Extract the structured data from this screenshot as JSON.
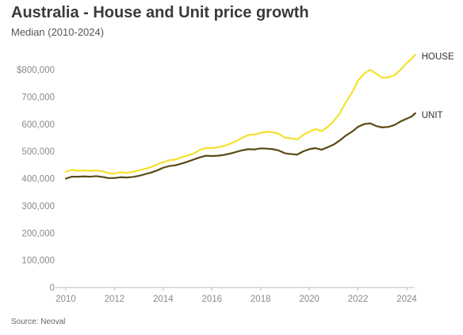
{
  "chart_title": "Australia - House and Unit price growth",
  "chart_subtitle": "Median (2010-2024)",
  "source": "Source: Neoval",
  "colors": {
    "house": "#f5e12c",
    "unit": "#5a4a12",
    "axis": "#bbbbbb",
    "tick_text": "#8a8a8a"
  },
  "chart_data": {
    "type": "line",
    "title": "Australia - House and Unit price growth",
    "subtitle": "Median (2010-2024)",
    "xlabel": "",
    "ylabel": "",
    "xlim": [
      2010,
      2024.4
    ],
    "ylim": [
      0,
      800000
    ],
    "grid": false,
    "legend": "labels at line ends (right)",
    "x_ticks": [
      {
        "value": 2010,
        "label": "2010"
      },
      {
        "value": 2012,
        "label": "2012"
      },
      {
        "value": 2014,
        "label": "2014"
      },
      {
        "value": 2016,
        "label": "2016"
      },
      {
        "value": 2018,
        "label": "2018"
      },
      {
        "value": 2020,
        "label": "2020"
      },
      {
        "value": 2022,
        "label": "2022"
      },
      {
        "value": 2024,
        "label": "2024"
      }
    ],
    "y_ticks": [
      {
        "value": 0,
        "label": "0"
      },
      {
        "value": 100000,
        "label": "100,000"
      },
      {
        "value": 200000,
        "label": "200,000"
      },
      {
        "value": 300000,
        "label": "300,000"
      },
      {
        "value": 400000,
        "label": "400,000"
      },
      {
        "value": 500000,
        "label": "500,000"
      },
      {
        "value": 600000,
        "label": "600,000"
      },
      {
        "value": 700000,
        "label": "700,000"
      },
      {
        "value": 800000,
        "label": "$800,000"
      }
    ],
    "series": [
      {
        "name": "HOUSE",
        "color": "#f5e12c",
        "points": [
          [
            2010.0,
            425000
          ],
          [
            2010.25,
            432000
          ],
          [
            2010.5,
            429000
          ],
          [
            2010.75,
            430000
          ],
          [
            2011.0,
            428000
          ],
          [
            2011.25,
            430000
          ],
          [
            2011.5,
            427000
          ],
          [
            2011.75,
            420000
          ],
          [
            2012.0,
            418000
          ],
          [
            2012.25,
            424000
          ],
          [
            2012.5,
            421000
          ],
          [
            2012.75,
            425000
          ],
          [
            2013.0,
            430000
          ],
          [
            2013.25,
            436000
          ],
          [
            2013.5,
            442000
          ],
          [
            2013.75,
            452000
          ],
          [
            2014.0,
            460000
          ],
          [
            2014.25,
            467000
          ],
          [
            2014.5,
            470000
          ],
          [
            2014.75,
            478000
          ],
          [
            2015.0,
            485000
          ],
          [
            2015.25,
            492000
          ],
          [
            2015.5,
            505000
          ],
          [
            2015.75,
            513000
          ],
          [
            2016.0,
            512000
          ],
          [
            2016.25,
            515000
          ],
          [
            2016.5,
            520000
          ],
          [
            2016.75,
            528000
          ],
          [
            2017.0,
            538000
          ],
          [
            2017.25,
            550000
          ],
          [
            2017.5,
            560000
          ],
          [
            2017.75,
            562000
          ],
          [
            2018.0,
            568000
          ],
          [
            2018.25,
            572000
          ],
          [
            2018.5,
            570000
          ],
          [
            2018.75,
            565000
          ],
          [
            2019.0,
            550000
          ],
          [
            2019.25,
            548000
          ],
          [
            2019.5,
            544000
          ],
          [
            2019.75,
            560000
          ],
          [
            2020.0,
            572000
          ],
          [
            2020.25,
            582000
          ],
          [
            2020.5,
            574000
          ],
          [
            2020.75,
            590000
          ],
          [
            2021.0,
            610000
          ],
          [
            2021.25,
            640000
          ],
          [
            2021.5,
            680000
          ],
          [
            2021.75,
            715000
          ],
          [
            2022.0,
            760000
          ],
          [
            2022.25,
            785000
          ],
          [
            2022.5,
            800000
          ],
          [
            2022.75,
            785000
          ],
          [
            2023.0,
            770000
          ],
          [
            2023.25,
            772000
          ],
          [
            2023.5,
            780000
          ],
          [
            2023.75,
            800000
          ],
          [
            2024.0,
            825000
          ],
          [
            2024.2,
            840000
          ],
          [
            2024.35,
            855000
          ]
        ]
      },
      {
        "name": "UNIT",
        "color": "#5a4a12",
        "points": [
          [
            2010.0,
            400000
          ],
          [
            2010.25,
            407000
          ],
          [
            2010.5,
            407000
          ],
          [
            2010.75,
            408000
          ],
          [
            2011.0,
            407000
          ],
          [
            2011.25,
            409000
          ],
          [
            2011.5,
            406000
          ],
          [
            2011.75,
            402000
          ],
          [
            2012.0,
            402000
          ],
          [
            2012.25,
            405000
          ],
          [
            2012.5,
            404000
          ],
          [
            2012.75,
            406000
          ],
          [
            2013.0,
            410000
          ],
          [
            2013.25,
            416000
          ],
          [
            2013.5,
            422000
          ],
          [
            2013.75,
            430000
          ],
          [
            2014.0,
            440000
          ],
          [
            2014.25,
            446000
          ],
          [
            2014.5,
            449000
          ],
          [
            2014.75,
            455000
          ],
          [
            2015.0,
            462000
          ],
          [
            2015.25,
            470000
          ],
          [
            2015.5,
            478000
          ],
          [
            2015.75,
            484000
          ],
          [
            2016.0,
            483000
          ],
          [
            2016.25,
            484000
          ],
          [
            2016.5,
            487000
          ],
          [
            2016.75,
            492000
          ],
          [
            2017.0,
            498000
          ],
          [
            2017.25,
            504000
          ],
          [
            2017.5,
            508000
          ],
          [
            2017.75,
            507000
          ],
          [
            2018.0,
            511000
          ],
          [
            2018.25,
            510000
          ],
          [
            2018.5,
            508000
          ],
          [
            2018.75,
            503000
          ],
          [
            2019.0,
            493000
          ],
          [
            2019.25,
            490000
          ],
          [
            2019.5,
            488000
          ],
          [
            2019.75,
            500000
          ],
          [
            2020.0,
            508000
          ],
          [
            2020.25,
            512000
          ],
          [
            2020.5,
            506000
          ],
          [
            2020.75,
            515000
          ],
          [
            2021.0,
            525000
          ],
          [
            2021.25,
            540000
          ],
          [
            2021.5,
            558000
          ],
          [
            2021.75,
            572000
          ],
          [
            2022.0,
            590000
          ],
          [
            2022.25,
            600000
          ],
          [
            2022.5,
            603000
          ],
          [
            2022.75,
            593000
          ],
          [
            2023.0,
            588000
          ],
          [
            2023.25,
            590000
          ],
          [
            2023.5,
            597000
          ],
          [
            2023.75,
            610000
          ],
          [
            2024.0,
            620000
          ],
          [
            2024.2,
            628000
          ],
          [
            2024.35,
            640000
          ]
        ]
      }
    ]
  }
}
